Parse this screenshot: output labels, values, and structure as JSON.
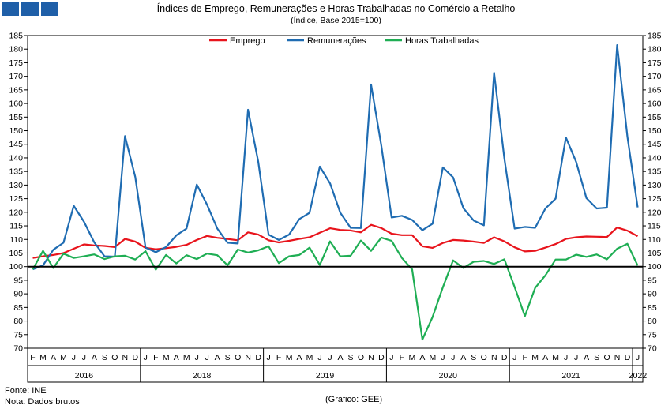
{
  "header": {
    "title": "Índices de Emprego, Remunerações e Horas Trabalhadas no Comércio a Retalho",
    "subtitle": "(Índice, Base 2015=100)"
  },
  "footer": {
    "source": "Fonte: INE",
    "note": "Nota: Dados brutos",
    "credit": "(Gráfico: GEE)"
  },
  "chart_data": {
    "type": "line",
    "title": "Índices de Emprego, Remunerações e Horas Trabalhadas no Comércio a Retalho",
    "subtitle": "(Índice, Base 2015=100)",
    "ylim": [
      70,
      185
    ],
    "yticks": [
      70,
      75,
      80,
      85,
      90,
      95,
      100,
      105,
      110,
      115,
      120,
      125,
      130,
      135,
      140,
      145,
      150,
      155,
      160,
      165,
      170,
      175,
      180,
      185
    ],
    "reference_line": 100,
    "grid": false,
    "legend_position": "top-center",
    "month_labels": [
      "F",
      "M",
      "A",
      "M",
      "J",
      "J",
      "A",
      "S",
      "O",
      "N",
      "D",
      "J",
      "F",
      "M",
      "A",
      "M",
      "J",
      "J",
      "A",
      "S",
      "O",
      "N",
      "D",
      "J",
      "F",
      "M",
      "A",
      "M",
      "J",
      "J",
      "A",
      "S",
      "O",
      "N",
      "D",
      "J",
      "F",
      "M",
      "A",
      "M",
      "J",
      "J",
      "A",
      "S",
      "O",
      "N",
      "D",
      "J",
      "F",
      "M",
      "A",
      "M",
      "J",
      "J",
      "A",
      "S",
      "O",
      "N",
      "D",
      "J"
    ],
    "years": [
      {
        "label": "2016",
        "start": 0,
        "end": 11
      },
      {
        "label": "2018",
        "start": 11,
        "end": 23
      },
      {
        "label": "2019",
        "start": 23,
        "end": 35
      },
      {
        "label": "2020",
        "start": 35,
        "end": 47
      },
      {
        "label": "2021",
        "start": 47,
        "end": 59
      },
      {
        "label": "2022",
        "start": 59,
        "end": 60
      }
    ],
    "series": [
      {
        "name": "Emprego",
        "color": "#e8141c",
        "values": [
          103.2,
          103.8,
          104.3,
          105.0,
          106.6,
          108.2,
          107.8,
          107.6,
          107.2,
          110.2,
          109.2,
          106.9,
          106.4,
          106.8,
          107.3,
          108.0,
          109.8,
          111.3,
          110.6,
          110.2,
          109.7,
          112.6,
          111.8,
          109.7,
          108.9,
          109.5,
          110.2,
          110.8,
          112.5,
          114.1,
          113.5,
          113.3,
          112.6,
          115.4,
          114.2,
          112.1,
          111.6,
          111.6,
          107.5,
          106.9,
          108.7,
          109.8,
          109.6,
          109.2,
          108.7,
          110.8,
          109.3,
          107.1,
          105.6,
          105.8,
          107.0,
          108.3,
          110.2,
          110.8,
          111.1,
          111.0,
          110.9,
          114.4,
          113.2,
          111.2
        ]
      },
      {
        "name": "Remunerações",
        "color": "#1f6cb2",
        "values": [
          99.0,
          100.5,
          106.2,
          108.8,
          122.4,
          116.5,
          108.9,
          103.8,
          103.7,
          148.0,
          133.0,
          107.0,
          105.3,
          107.2,
          111.5,
          114.0,
          130.2,
          122.8,
          114.0,
          108.8,
          108.5,
          157.7,
          138.5,
          111.8,
          109.8,
          111.8,
          117.5,
          119.8,
          136.8,
          130.6,
          119.8,
          114.3,
          114.2,
          167.0,
          144.5,
          118.1,
          118.7,
          117.2,
          113.4,
          115.8,
          136.5,
          132.8,
          121.5,
          117.0,
          115.2,
          171.3,
          139.8,
          114.0,
          114.6,
          114.3,
          121.4,
          125.0,
          147.5,
          138.5,
          125.2,
          121.4,
          121.7,
          181.5,
          147.8,
          121.8
        ]
      },
      {
        "name": "Horas Trabalhadas",
        "color": "#1fae54",
        "values": [
          99.0,
          105.8,
          99.5,
          104.8,
          103.2,
          103.8,
          104.5,
          102.8,
          103.8,
          104.0,
          102.6,
          105.7,
          98.9,
          104.3,
          101.2,
          104.2,
          102.8,
          104.8,
          104.2,
          100.5,
          106.3,
          105.2,
          106.0,
          107.5,
          101.3,
          103.8,
          104.3,
          107.0,
          100.6,
          109.3,
          103.8,
          104.0,
          109.6,
          105.8,
          110.7,
          109.5,
          103.2,
          99.0,
          73.2,
          81.5,
          92.4,
          102.3,
          99.5,
          101.8,
          102.1,
          101.0,
          102.7,
          92.5,
          81.8,
          92.2,
          96.8,
          102.6,
          102.6,
          104.4,
          103.6,
          104.5,
          102.7,
          106.6,
          108.4,
          100.4
        ]
      }
    ]
  }
}
